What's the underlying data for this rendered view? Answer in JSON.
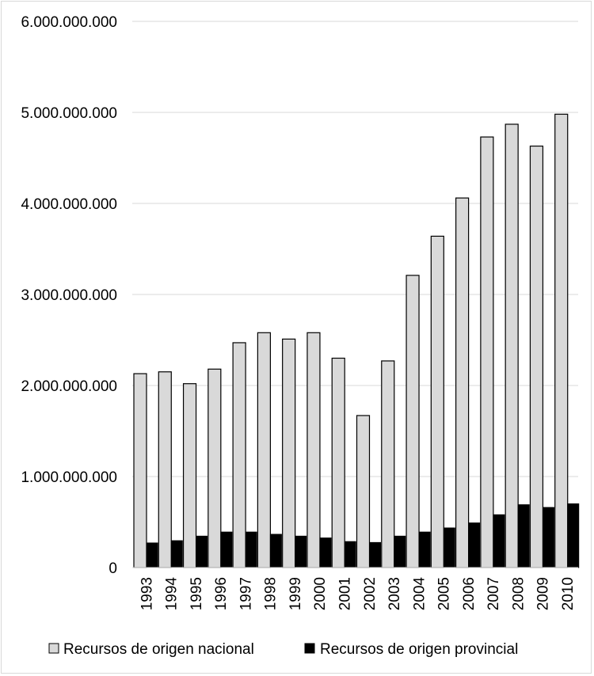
{
  "chart_data": {
    "type": "bar",
    "stacking": "overlap",
    "categories": [
      "1993",
      "1994",
      "1995",
      "1996",
      "1997",
      "1998",
      "1999",
      "2000",
      "2001",
      "2002",
      "2003",
      "2004",
      "2005",
      "2006",
      "2007",
      "2008",
      "2009",
      "2010"
    ],
    "series": [
      {
        "name": "Recursos de origen nacional",
        "color": "#d9d9d9",
        "values": [
          2130000000,
          2150000000,
          2020000000,
          2180000000,
          2470000000,
          2580000000,
          2510000000,
          2580000000,
          2300000000,
          1670000000,
          2270000000,
          3210000000,
          3640000000,
          4060000000,
          4730000000,
          4870000000,
          4630000000,
          4980000000
        ]
      },
      {
        "name": "Recursos de origen provincial",
        "color": "#000000",
        "values": [
          270000000,
          295000000,
          345000000,
          390000000,
          390000000,
          365000000,
          345000000,
          325000000,
          285000000,
          275000000,
          345000000,
          390000000,
          435000000,
          490000000,
          580000000,
          690000000,
          660000000,
          700000000
        ]
      }
    ],
    "yticks": [
      "0",
      "1.000.000.000",
      "2.000.000.000",
      "3.000.000.000",
      "4.000.000.000",
      "5.000.000.000",
      "6.000.000.000"
    ],
    "ylim": [
      0,
      6000000000
    ],
    "grid": true,
    "legend": "bottom",
    "title": "",
    "xlabel": "",
    "ylabel": ""
  }
}
